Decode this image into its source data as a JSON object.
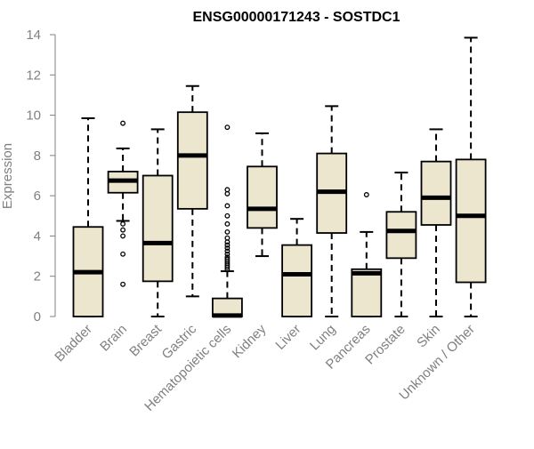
{
  "chart_data": {
    "type": "boxplot",
    "title": "ENSG00000171243 - SOSTDC1",
    "ylabel": "Expression",
    "xlabel": "",
    "ylim": [
      0,
      14
    ],
    "yticks": [
      0,
      2,
      4,
      6,
      8,
      10,
      12,
      14
    ],
    "grid": false,
    "colors": {
      "box_fill": "#ede6cf",
      "stroke": "#000000",
      "tick_text": "#808080",
      "axis": "#808080"
    },
    "categories": [
      "Bladder",
      "Brain",
      "Breast",
      "Gastric",
      "Hematopoietic cells",
      "Kidney",
      "Liver",
      "Lung",
      "Pancreas",
      "Prostate",
      "Skin",
      "Unknown / Other"
    ],
    "boxes": [
      {
        "name": "Bladder",
        "whisker_low": 0,
        "q1": 0,
        "median": 2.2,
        "q3": 4.45,
        "whisker_high": 9.85,
        "outliers": []
      },
      {
        "name": "Brain",
        "whisker_low": 4.75,
        "q1": 6.15,
        "median": 6.75,
        "q3": 7.2,
        "whisker_high": 8.35,
        "outliers": [
          9.6,
          4.6,
          4.3,
          4.0,
          3.1,
          1.6
        ]
      },
      {
        "name": "Breast",
        "whisker_low": 0,
        "q1": 1.75,
        "median": 3.65,
        "q3": 7.0,
        "whisker_high": 9.3,
        "outliers": []
      },
      {
        "name": "Gastric",
        "whisker_low": 1.0,
        "q1": 5.35,
        "median": 8.0,
        "q3": 10.15,
        "whisker_high": 11.45,
        "outliers": []
      },
      {
        "name": "Hematopoietic cells",
        "whisker_low": 0,
        "q1": 0,
        "median": 0.05,
        "q3": 0.9,
        "whisker_high": 2.25,
        "outliers": [
          9.4,
          6.3,
          6.1,
          5.5,
          5.0,
          4.6,
          4.2,
          3.9,
          3.7,
          3.55,
          3.4,
          3.25,
          3.1,
          2.95,
          2.85,
          2.75,
          2.65,
          2.55,
          2.45,
          2.35
        ]
      },
      {
        "name": "Kidney",
        "whisker_low": 3.0,
        "q1": 4.4,
        "median": 5.35,
        "q3": 7.45,
        "whisker_high": 9.1,
        "outliers": []
      },
      {
        "name": "Liver",
        "whisker_low": 0,
        "q1": 0,
        "median": 2.1,
        "q3": 3.55,
        "whisker_high": 4.85,
        "outliers": []
      },
      {
        "name": "Lung",
        "whisker_low": 0,
        "q1": 4.15,
        "median": 6.2,
        "q3": 8.1,
        "whisker_high": 10.45,
        "outliers": []
      },
      {
        "name": "Pancreas",
        "whisker_low": 0,
        "q1": 0,
        "median": 2.15,
        "q3": 2.35,
        "whisker_high": 4.2,
        "outliers": [
          6.05
        ]
      },
      {
        "name": "Prostate",
        "whisker_low": 0,
        "q1": 2.9,
        "median": 4.25,
        "q3": 5.2,
        "whisker_high": 7.15,
        "outliers": []
      },
      {
        "name": "Skin",
        "whisker_low": 0,
        "q1": 4.55,
        "median": 5.9,
        "q3": 7.7,
        "whisker_high": 9.3,
        "outliers": []
      },
      {
        "name": "Unknown / Other",
        "whisker_low": 0,
        "q1": 1.7,
        "median": 5.0,
        "q3": 7.8,
        "whisker_high": 13.85,
        "outliers": []
      }
    ]
  }
}
